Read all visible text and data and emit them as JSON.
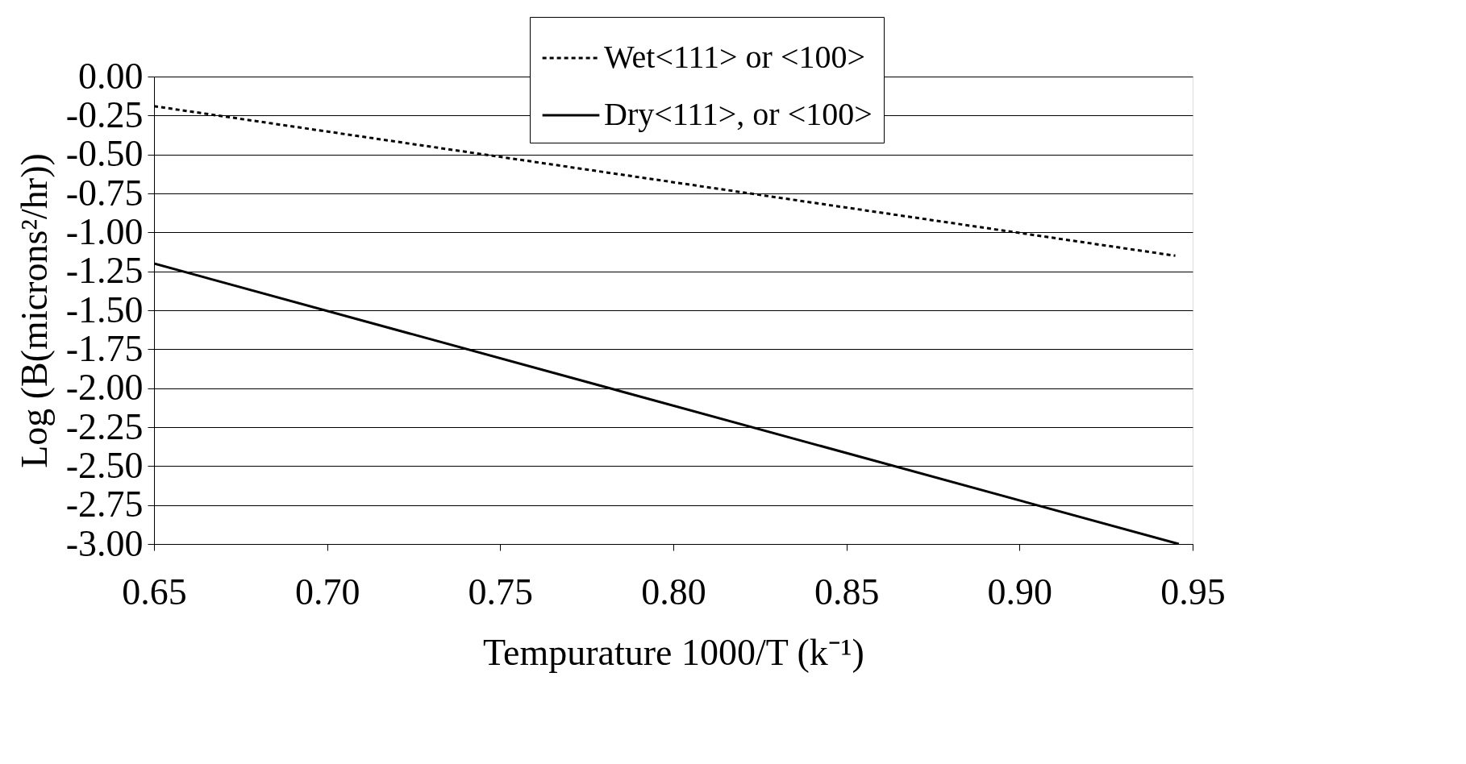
{
  "chart_data": {
    "type": "line",
    "xlabel": "Tempurature 1000/T (k⁻¹)",
    "ylabel": "Log (B(microns²/hr))",
    "series": [
      {
        "name": "Wet<111> or <100>",
        "color": "#000000",
        "line_style": "dotted",
        "x": [
          0.65,
          0.945
        ],
        "values": [
          -0.19,
          -1.15
        ]
      },
      {
        "name": "Dry<111>, or <100>",
        "color": "#000000",
        "line_style": "solid",
        "x": [
          0.65,
          0.946
        ],
        "values": [
          -1.2,
          -3.0
        ]
      }
    ],
    "xlim": [
      0.65,
      0.95
    ],
    "xticks": [
      0.65,
      {
        "value": 0.7,
        "label": "0.70"
      },
      0.75,
      {
        "value": 0.8,
        "label": "0.80"
      },
      0.85,
      {
        "value": 0.9,
        "label": "0.90"
      },
      0.95
    ],
    "ylim": [
      -3.0,
      0.0
    ],
    "yticks": [
      {
        "value": 0,
        "label": "0.00"
      },
      -0.25,
      {
        "value": -0.5,
        "label": "-0.50"
      },
      -0.75,
      {
        "value": -1,
        "label": "-1.00"
      },
      -1.25,
      {
        "value": -1.5,
        "label": "-1.50"
      },
      -1.75,
      {
        "value": -2,
        "label": "-2.00"
      },
      -2.25,
      {
        "value": -2.5,
        "label": "-2.50"
      },
      -2.75,
      {
        "value": -3,
        "label": "-3.00"
      }
    ],
    "grid": "y",
    "legend": "top right",
    "marker": "none"
  }
}
